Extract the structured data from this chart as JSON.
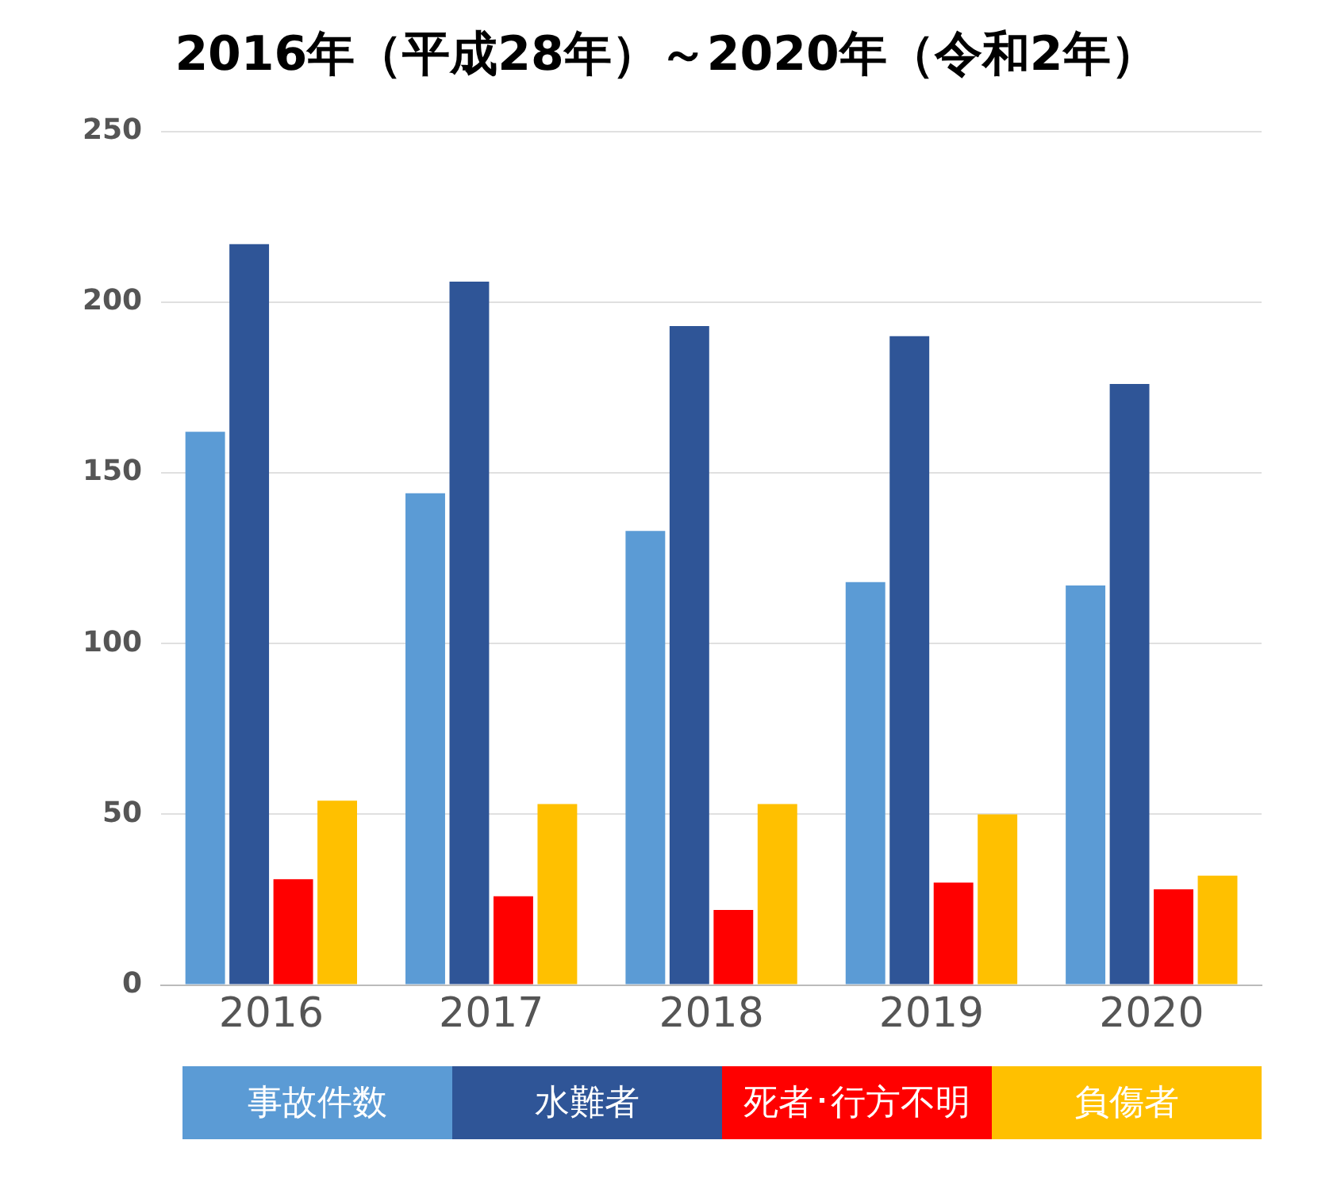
{
  "chart_data": {
    "type": "bar",
    "title": "2016年（平成28年）～2020年（令和2年）",
    "categories": [
      "2016",
      "2017",
      "2018",
      "2019",
      "2020"
    ],
    "series": [
      {
        "name": "事故件数",
        "color": "#5b9bd5",
        "values": [
          162,
          144,
          133,
          118,
          117
        ]
      },
      {
        "name": "水難者",
        "color": "#2f5597",
        "values": [
          217,
          206,
          193,
          190,
          176
        ]
      },
      {
        "name": "死者･行方不明",
        "color": "#ff0000",
        "values": [
          31,
          26,
          22,
          30,
          28
        ]
      },
      {
        "name": "負傷者",
        "color": "#ffc000",
        "values": [
          54,
          53,
          53,
          50,
          32
        ]
      }
    ],
    "ylim": [
      0,
      250
    ],
    "yticks": [
      0,
      50,
      100,
      150,
      200,
      250
    ],
    "grid": "y",
    "legend": "bottom"
  }
}
